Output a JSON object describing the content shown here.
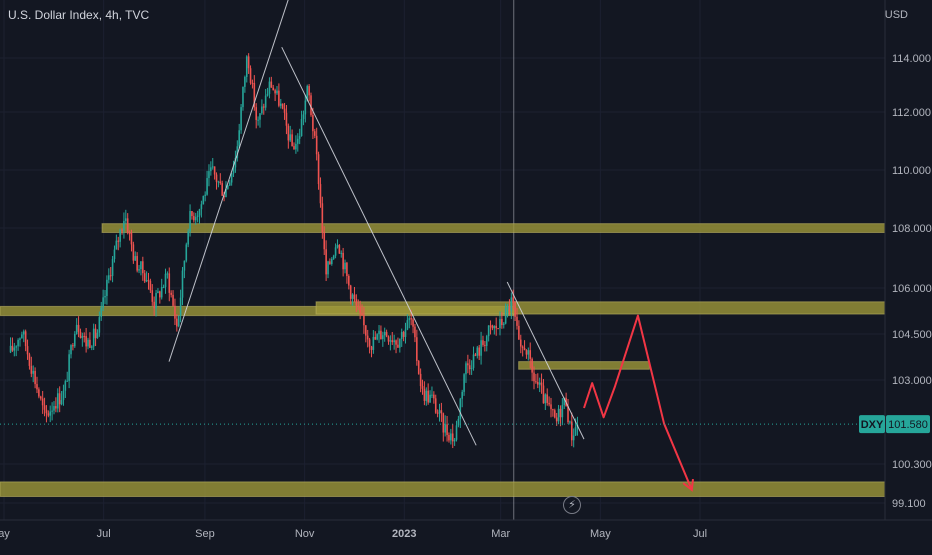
{
  "header": {
    "title": "U.S. Dollar Index, 4h, TVC",
    "currency": "USD"
  },
  "badges": {
    "symbol": "DXY",
    "last_price": "101.580",
    "event_icon": "lightning-icon"
  },
  "colors": {
    "background": "#131722",
    "up": "#26a69a",
    "down": "#ef5350",
    "zone": "#a09a3a",
    "trendline": "#d1d4dc",
    "projection": "#f23645",
    "axis_text": "#b2b5be",
    "price_badge": "#26a69a"
  },
  "chart_data": {
    "type": "candlestick",
    "title": "U.S. Dollar Index, 4h, TVC",
    "timeframe": "4h",
    "y_ticks": [
      "114.000",
      "112.000",
      "110.000",
      "108.000",
      "106.000",
      "104.500",
      "103.000",
      "100.300",
      "99.100"
    ],
    "y_tick_values": [
      114.0,
      112.0,
      110.0,
      108.0,
      106.0,
      104.5,
      103.0,
      100.3,
      99.1
    ],
    "x_ticks": [
      "ay",
      "Jul",
      "Sep",
      "Nov",
      "2023",
      "Mar",
      "May",
      "Jul"
    ],
    "x_tick_dates": [
      "2022-05-01",
      "2022-07-01",
      "2022-09-01",
      "2022-11-01",
      "2023-01-01",
      "2023-03-01",
      "2023-05-01",
      "2023-07-01"
    ],
    "last_price": 101.58,
    "vertical_marker_date": "2023-03-09",
    "price_path": [
      [
        "2022-05-05",
        103.9
      ],
      [
        "2022-05-12",
        104.6
      ],
      [
        "2022-05-20",
        103.0
      ],
      [
        "2022-05-26",
        101.8
      ],
      [
        "2022-06-01",
        102.3
      ],
      [
        "2022-06-07",
        102.6
      ],
      [
        "2022-06-14",
        105.0
      ],
      [
        "2022-06-20",
        104.2
      ],
      [
        "2022-06-27",
        104.5
      ],
      [
        "2022-07-05",
        106.6
      ],
      [
        "2022-07-14",
        108.5
      ],
      [
        "2022-07-20",
        106.9
      ],
      [
        "2022-07-27",
        106.4
      ],
      [
        "2022-08-01",
        105.5
      ],
      [
        "2022-08-09",
        106.4
      ],
      [
        "2022-08-15",
        104.7
      ],
      [
        "2022-08-22",
        108.3
      ],
      [
        "2022-08-29",
        108.7
      ],
      [
        "2022-09-05",
        110.0
      ],
      [
        "2022-09-13",
        109.2
      ],
      [
        "2022-09-20",
        110.5
      ],
      [
        "2022-09-27",
        114.2
      ],
      [
        "2022-10-03",
        111.5
      ],
      [
        "2022-10-11",
        113.1
      ],
      [
        "2022-10-17",
        112.3
      ],
      [
        "2022-10-24",
        110.8
      ],
      [
        "2022-10-28",
        111.0
      ],
      [
        "2022-11-03",
        112.9
      ],
      [
        "2022-11-09",
        110.1
      ],
      [
        "2022-11-14",
        106.4
      ],
      [
        "2022-11-21",
        107.7
      ],
      [
        "2022-11-28",
        106.1
      ],
      [
        "2022-12-05",
        105.0
      ],
      [
        "2022-12-12",
        104.2
      ],
      [
        "2022-12-19",
        104.6
      ],
      [
        "2022-12-28",
        104.3
      ],
      [
        "2023-01-05",
        105.0
      ],
      [
        "2023-01-12",
        102.6
      ],
      [
        "2023-01-18",
        102.4
      ],
      [
        "2023-01-25",
        101.5
      ],
      [
        "2023-02-01",
        101.1
      ],
      [
        "2023-02-07",
        103.4
      ],
      [
        "2023-02-15",
        103.9
      ],
      [
        "2023-02-22",
        104.6
      ],
      [
        "2023-03-01",
        104.8
      ],
      [
        "2023-03-08",
        105.6
      ],
      [
        "2023-03-13",
        103.8
      ],
      [
        "2023-03-16",
        104.2
      ],
      [
        "2023-03-20",
        103.2
      ],
      [
        "2023-03-24",
        102.8
      ],
      [
        "2023-03-29",
        102.2
      ],
      [
        "2023-04-04",
        101.6
      ],
      [
        "2023-04-06",
        102.0
      ],
      [
        "2023-04-10",
        102.4
      ],
      [
        "2023-04-13",
        101.2
      ],
      [
        "2023-04-17",
        101.6
      ]
    ],
    "zones": [
      {
        "from": "2022-06-30",
        "to": "end",
        "low": 107.85,
        "high": 108.15
      },
      {
        "from": "start",
        "to": "2023-03-09",
        "low": 105.1,
        "high": 105.4
      },
      {
        "from": "2022-11-08",
        "to": "end",
        "low": 105.15,
        "high": 105.55
      },
      {
        "from": "2023-03-12",
        "to": "2023-05-31",
        "low": 103.35,
        "high": 103.6
      },
      {
        "from": "start",
        "to": "end",
        "low": 99.3,
        "high": 99.75
      }
    ],
    "trendlines": [
      {
        "from": [
          "2022-08-10",
          103.6
        ],
        "to": [
          "2022-10-26",
          116.9
        ]
      },
      {
        "from": [
          "2022-10-18",
          114.4
        ],
        "to": [
          "2023-02-14",
          100.9
        ]
      },
      {
        "from": [
          "2023-03-05",
          106.2
        ],
        "to": [
          "2023-04-21",
          101.1
        ]
      }
    ],
    "projection": [
      [
        "2023-04-21",
        102.1
      ],
      [
        "2023-04-26",
        102.9
      ],
      [
        "2023-05-03",
        101.8
      ],
      [
        "2023-05-10",
        102.8
      ],
      [
        "2023-05-24",
        105.1
      ],
      [
        "2023-06-09",
        101.6
      ],
      [
        "2023-06-26",
        99.5
      ]
    ]
  }
}
